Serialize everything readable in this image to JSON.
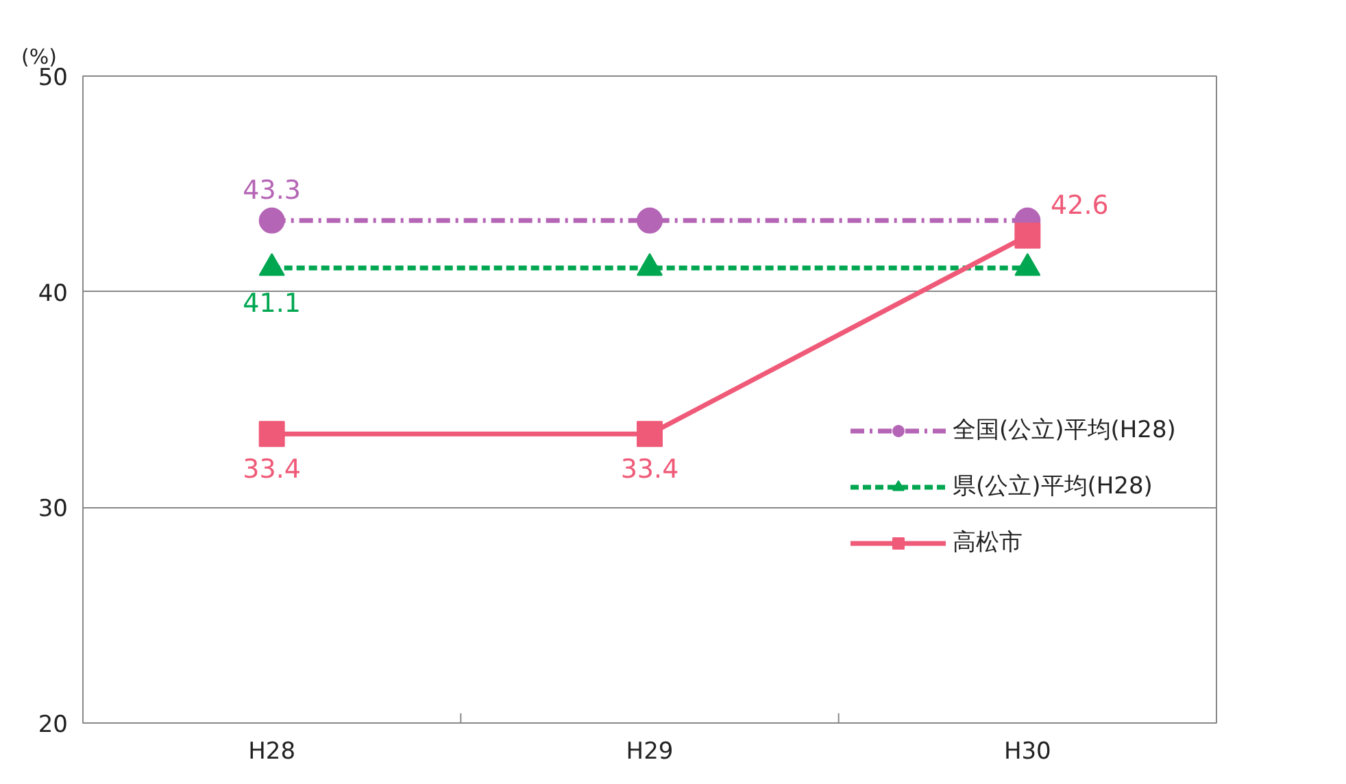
{
  "chart_data": {
    "type": "line",
    "ylabel": "(%)",
    "categories": [
      "H28",
      "H29",
      "H30"
    ],
    "series": [
      {
        "name": "全国(公立)平均(H28)",
        "color": "#b565b5",
        "values": [
          43.3,
          43.3,
          43.3
        ],
        "value_labels": [
          "43.3",
          null,
          null
        ],
        "marker": "circle",
        "line_style": "dashdot"
      },
      {
        "name": "県(公立)平均(H28)",
        "color": "#00a650",
        "values": [
          41.1,
          41.1,
          41.1
        ],
        "value_labels": [
          "41.1",
          null,
          null
        ],
        "marker": "triangle",
        "line_style": "dashed"
      },
      {
        "name": "高松市",
        "color": "#ef5a78",
        "values": [
          33.4,
          33.4,
          42.6
        ],
        "value_labels": [
          "33.4",
          "33.4",
          "42.6"
        ],
        "marker": "square",
        "line_style": "solid"
      }
    ],
    "ylim": [
      20,
      50
    ],
    "yticks": [
      20,
      30,
      40,
      50
    ],
    "grid": "y",
    "legend": "right"
  }
}
